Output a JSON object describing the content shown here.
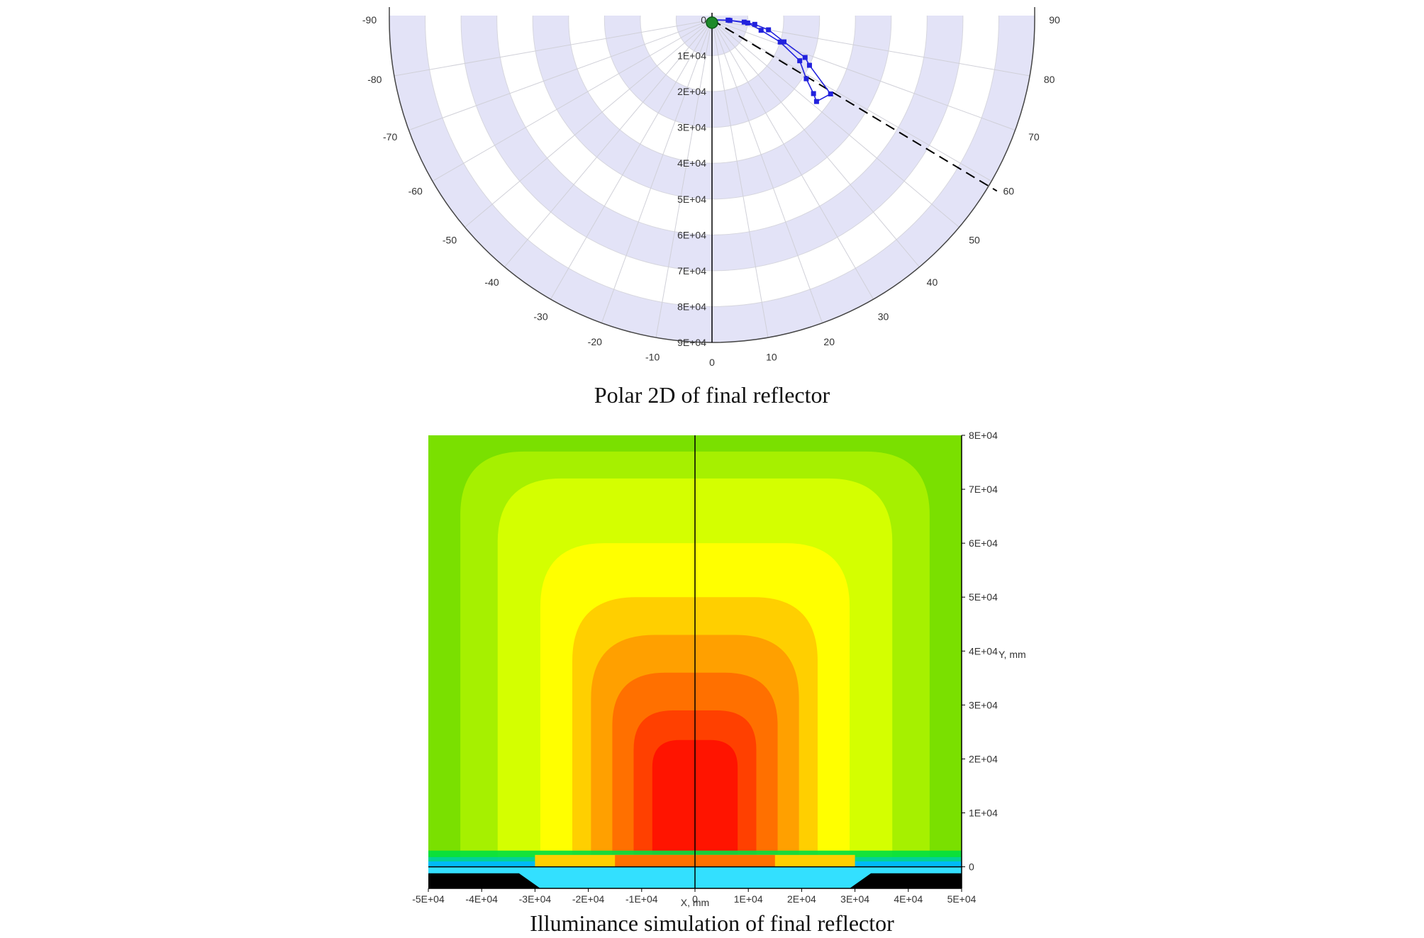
{
  "chart_data": [
    {
      "type": "polar",
      "angle_ticks_left": [
        "-90",
        "-80",
        "-70",
        "-60",
        "-50",
        "-40",
        "-30",
        "-20",
        "-10"
      ],
      "angle_ticks_right": [
        "90",
        "80",
        "70",
        "60",
        "50",
        "40",
        "30",
        "20",
        "10"
      ],
      "angle_tick_center": "0",
      "radial_ticks": [
        "0",
        "1E+04",
        "2E+04",
        "3E+04",
        "4E+04",
        "5E+04",
        "6E+04",
        "7E+04",
        "8E+04",
        "9E+04"
      ],
      "radial_max": 90000,
      "series": [
        {
          "color": "#2222dd",
          "points": [
            [
              88,
              5000
            ],
            [
              85,
              10000
            ],
            [
              78,
              14000
            ],
            [
              72,
              20000
            ],
            [
              65,
              27000
            ],
            [
              58,
              31000
            ],
            [
              54,
              35000
            ],
            [
              52,
              37000
            ],
            [
              58,
              39000
            ],
            [
              65,
              30000
            ],
            [
              68,
              28000
            ],
            [
              73,
              21000
            ],
            [
              80,
              16000
            ],
            [
              84,
              12000
            ],
            [
              86,
              9000
            ],
            [
              89,
              4500
            ]
          ]
        }
      ],
      "reference_line": {
        "angle": 59,
        "style": "dashed",
        "color": "#000000"
      },
      "caption": "Polar 2D of final reflector"
    },
    {
      "type": "heatmap",
      "x_ticks": [
        "-5E+04",
        "-4E+04",
        "-3E+04",
        "-2E+04",
        "-1E+04",
        "0",
        "1E+04",
        "2E+04",
        "3E+04",
        "4E+04",
        "5E+04"
      ],
      "y_ticks": [
        "0",
        "1E+04",
        "2E+04",
        "3E+04",
        "4E+04",
        "5E+04",
        "6E+04",
        "7E+04",
        "8E+04"
      ],
      "xlabel": "X, mm",
      "ylabel": "Y, mm",
      "xlim": [
        -50000,
        50000
      ],
      "ylim": [
        -4000,
        80000
      ],
      "levels": [
        {
          "color": "#7ae000",
          "half_width": 50000,
          "top": 80000
        },
        {
          "color": "#a6f000",
          "half_width": 44000,
          "top": 77000
        },
        {
          "color": "#d4ff00",
          "half_width": 37000,
          "top": 72000
        },
        {
          "color": "#ffff00",
          "half_width": 29000,
          "top": 60000
        },
        {
          "color": "#ffcf00",
          "half_width": 23000,
          "top": 50000
        },
        {
          "color": "#ffa000",
          "half_width": 19500,
          "top": 43000
        },
        {
          "color": "#ff7000",
          "half_width": 15500,
          "top": 36000
        },
        {
          "color": "#ff4000",
          "half_width": 11500,
          "top": 29000
        },
        {
          "color": "#ff1400",
          "half_width": 8000,
          "top": 23500
        }
      ],
      "caption": "Illuminance simulation of final reflector"
    }
  ]
}
